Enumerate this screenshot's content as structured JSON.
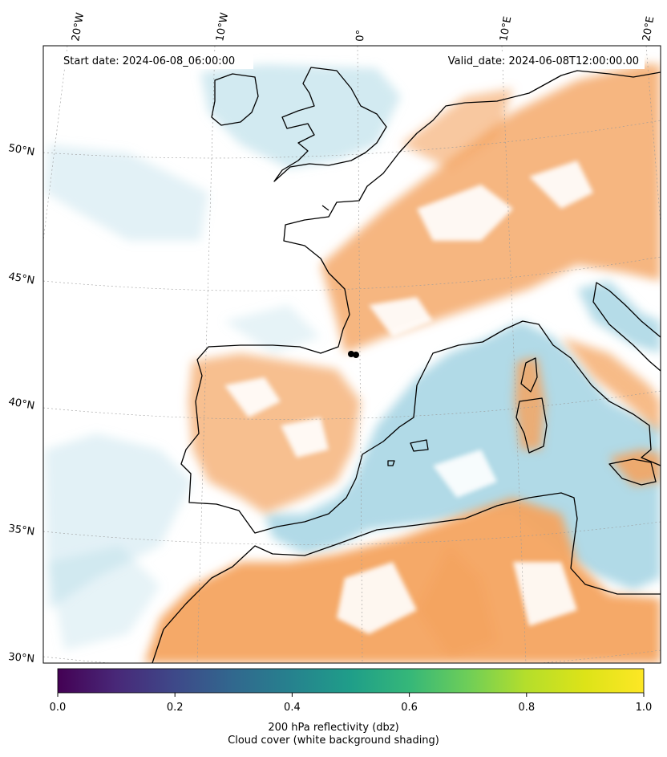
{
  "annotations": {
    "start_date": "Start date: 2024-06-08_06:00:00",
    "valid_date": "Valid_date: 2024-06-08T12:00:00.00"
  },
  "longitude_labels": [
    "20°W",
    "10°W",
    "0°",
    "10°E",
    "20°E"
  ],
  "latitude_labels": [
    "50°N",
    "45°N",
    "40°N",
    "35°N",
    "30°N"
  ],
  "colorbar": {
    "tick_labels": [
      "0.0",
      "0.2",
      "0.4",
      "0.6",
      "0.8",
      "1.0"
    ],
    "range": [
      0.0,
      1.0
    ],
    "colormap": "viridis",
    "label_line1": "200 hPa reflectivity (dbz)",
    "label_line2": "Cloud cover (white background shading)"
  },
  "colors": {
    "warm_shading": "#f4a460",
    "cool_shading": "#add8e6",
    "coastline": "#000000",
    "cloud_background": "#ffffff"
  },
  "chart_data": {
    "type": "heatmap",
    "projection": "regional lat/lon map, Western Europe / Mediterranean",
    "lon_ticks": [
      -20,
      -10,
      0,
      10,
      20
    ],
    "lat_ticks": [
      50,
      45,
      40,
      35,
      30
    ],
    "colorbar_range": [
      0.0,
      1.0
    ],
    "colorbar_ticks": [
      0.0,
      0.2,
      0.4,
      0.6,
      0.8,
      1.0
    ],
    "grid": true
  }
}
